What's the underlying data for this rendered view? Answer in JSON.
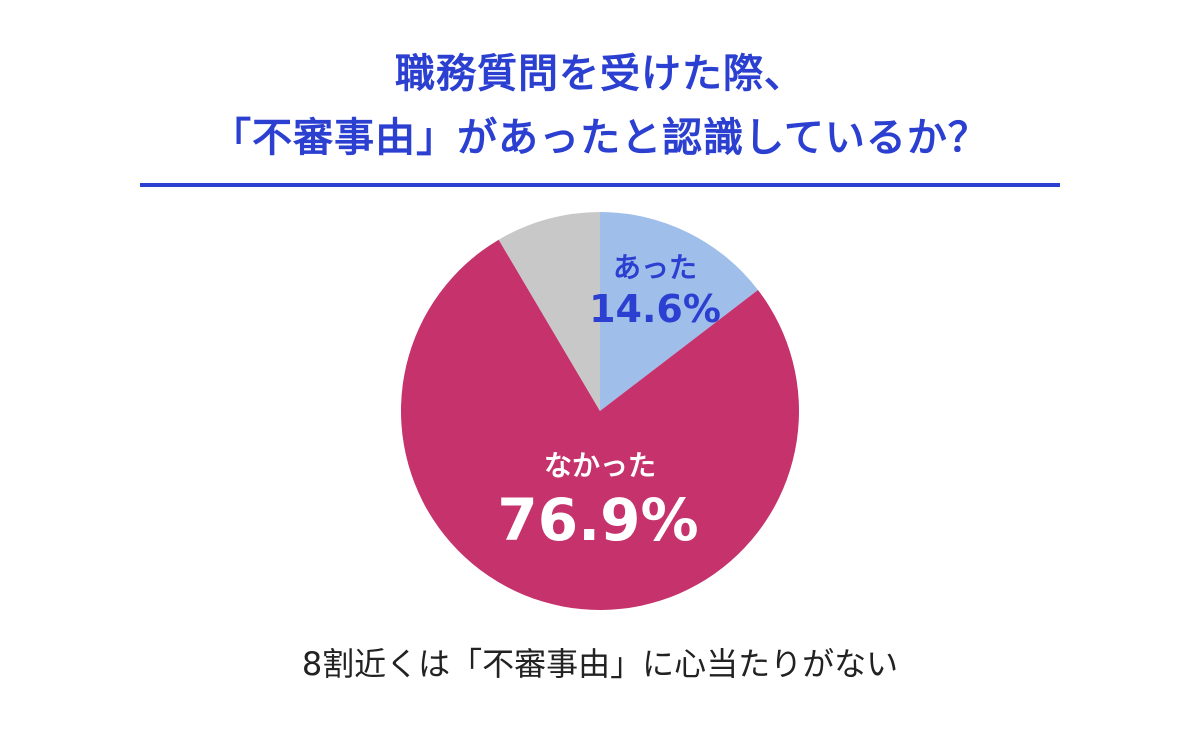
{
  "chart_data": {
    "type": "pie",
    "title_lines": [
      "職務質問を受けた際、",
      "「不審事由」があったと認識しているか？"
    ],
    "categories": [
      "あった",
      "なかった",
      ""
    ],
    "values": [
      14.6,
      76.9,
      8.5
    ],
    "labels": [
      "14.6%",
      "76.9%"
    ],
    "colors": [
      "#9fbfea",
      "#c5326c",
      "#c8c8c8"
    ],
    "label_colors": [
      "#2b3fd0",
      "#ffffff"
    ],
    "start_angle_deg": 0,
    "direction": "clockwise"
  },
  "caption": "8割近くは「不審事由」に心当たりがない"
}
